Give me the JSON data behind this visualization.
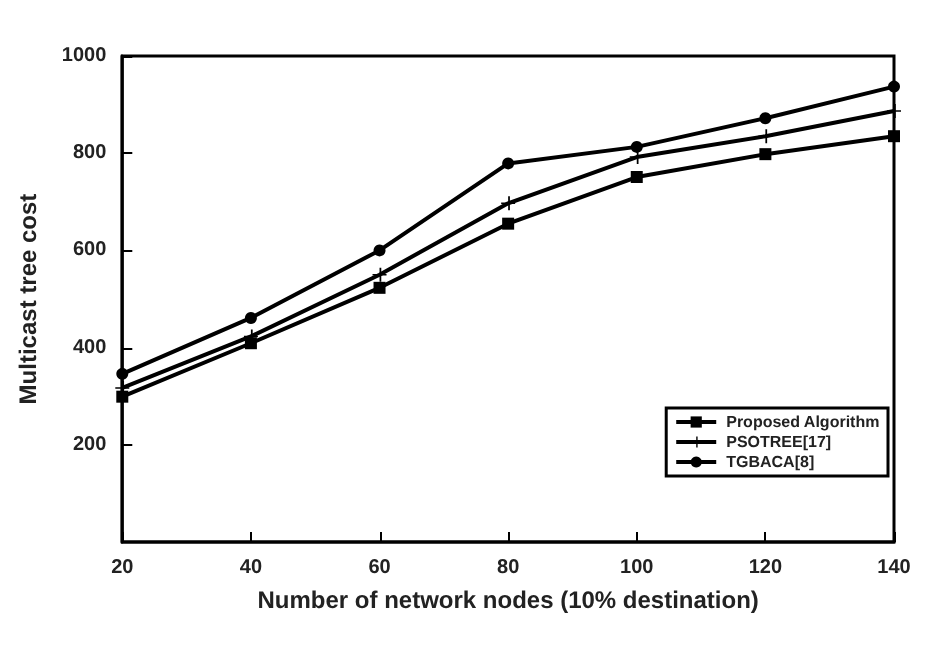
{
  "chart_data": {
    "type": "line",
    "xlabel": "Number of network nodes (10% destination)",
    "ylabel": "Multicast tree cost",
    "x": [
      20,
      40,
      60,
      80,
      100,
      120,
      140
    ],
    "series": [
      {
        "name": "Proposed Algorithm",
        "color": "#000000",
        "marker": "square",
        "values": [
          299,
          409,
          523,
          655,
          751,
          798,
          835
        ]
      },
      {
        "name": "PSOTREE[17]",
        "color": "#000000",
        "marker": "cross",
        "values": [
          317,
          423,
          550,
          697,
          792,
          835,
          887
        ]
      },
      {
        "name": "TGBACA[8]",
        "color": "#000000",
        "marker": "circle",
        "values": [
          346,
          461,
          600,
          779,
          813,
          872,
          937
        ]
      }
    ],
    "xlim": [
      20,
      140
    ],
    "xticks": [
      20,
      40,
      60,
      80,
      100,
      120,
      140
    ],
    "ylim": [
      0,
      1000
    ],
    "yticks": [
      200,
      400,
      600,
      800,
      1000
    ],
    "grid": false,
    "legend": "bottom right",
    "line_style": "solid"
  }
}
